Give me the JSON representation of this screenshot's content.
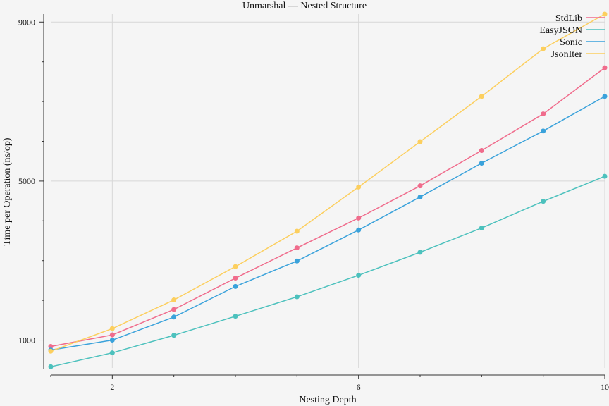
{
  "chart_data": {
    "type": "line",
    "title": "Unmarshal — Nested Structure",
    "xlabel": "Nesting Depth",
    "ylabel": "Time per Operation (ns/op)",
    "x": [
      1,
      2,
      3,
      4,
      5,
      6,
      7,
      8,
      9,
      10
    ],
    "xlim": [
      1,
      10
    ],
    "ylim": [
      300,
      9200
    ],
    "x_ticks": [
      2,
      6,
      10
    ],
    "x_minor_ticks": [
      1,
      3,
      4,
      5,
      7,
      8,
      9
    ],
    "y_ticks": [
      1000,
      5000,
      9000
    ],
    "y_minor_ticks": [
      2000,
      3000,
      4000,
      6000,
      7000,
      8000
    ],
    "grid": true,
    "legend_position": "top-right",
    "series": [
      {
        "name": "StdLib",
        "color": "#f06c8c",
        "values": [
          840,
          1130,
          1770,
          2560,
          3320,
          4070,
          4880,
          5770,
          6690,
          7850
        ]
      },
      {
        "name": "EasyJSON",
        "color": "#4cc1bd",
        "values": [
          330,
          680,
          1120,
          1600,
          2090,
          2630,
          3210,
          3820,
          4490,
          5120
        ]
      },
      {
        "name": "Sonic",
        "color": "#3aa2db",
        "values": [
          750,
          1000,
          1580,
          2350,
          2990,
          3770,
          4600,
          5450,
          6260,
          7130
        ]
      },
      {
        "name": "JsonIter",
        "color": "#fccf5e",
        "values": [
          720,
          1290,
          2010,
          2850,
          3740,
          4850,
          5990,
          7130,
          8330,
          9200
        ]
      }
    ]
  }
}
